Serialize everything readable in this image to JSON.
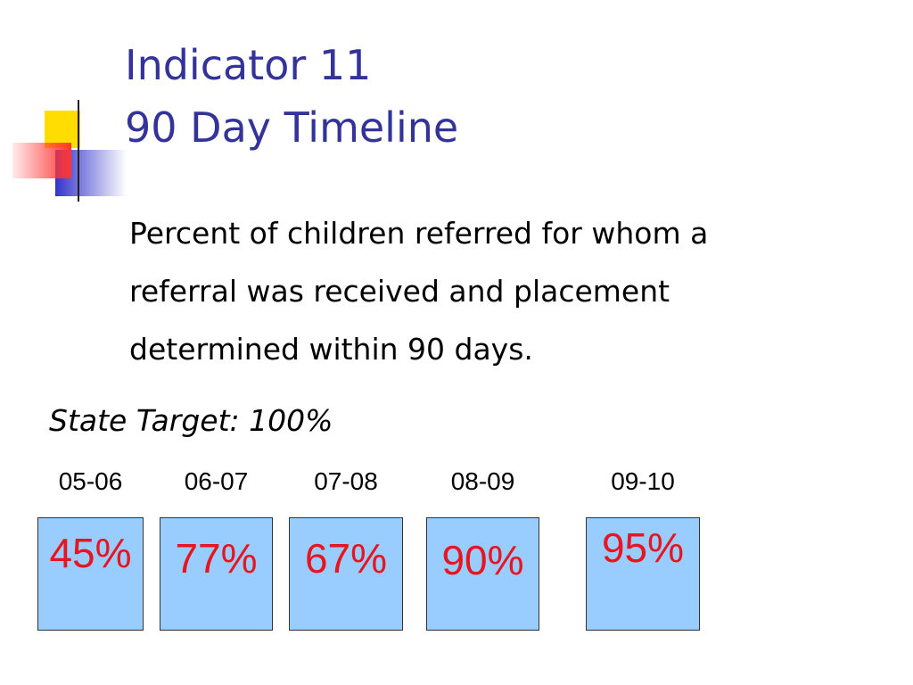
{
  "title": [
    "Indicator 11",
    "90 Day Timeline"
  ],
  "description": [
    "Percent of children referred for whom a",
    "referral was received and placement",
    "determined within 90 days."
  ],
  "target": "State Target: 100%",
  "years": [
    {
      "label": "05-06",
      "value": "45%"
    },
    {
      "label": "06-07",
      "value": "77%"
    },
    {
      "label": "07-08",
      "value": "67%"
    },
    {
      "label": "08-09",
      "value": "90%"
    },
    {
      "label": "09-10",
      "value": "95%"
    }
  ]
}
